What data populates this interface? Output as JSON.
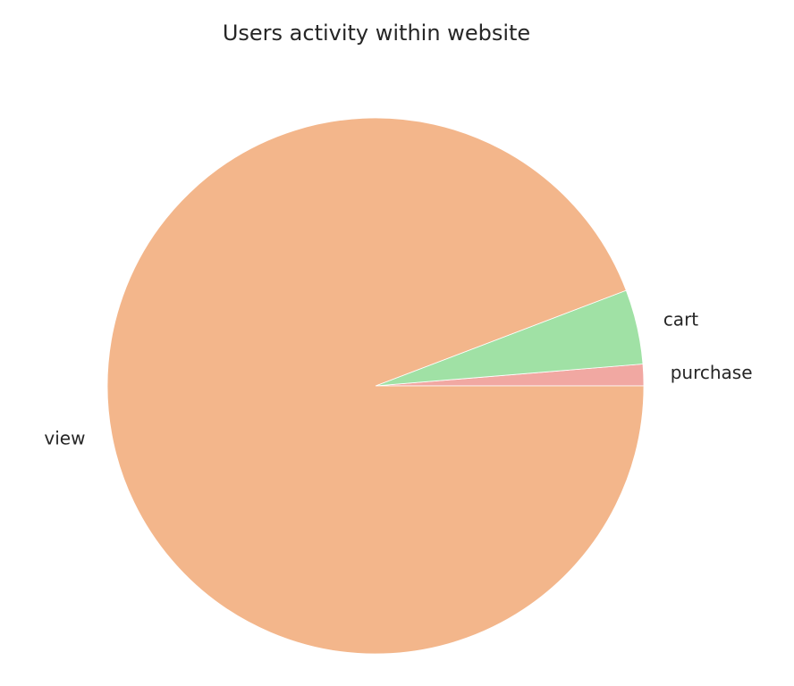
{
  "chart_data": {
    "type": "pie",
    "title": "Users activity within website",
    "start_angle_deg": 0,
    "direction": "counterclockwise",
    "slices": [
      {
        "label": "purchase",
        "value": 1.3,
        "color": "#f1a8a2"
      },
      {
        "label": "cart",
        "value": 4.5,
        "color": "#a0e1a5"
      },
      {
        "label": "view",
        "value": 94.2,
        "color": "#f3b68b"
      }
    ]
  }
}
